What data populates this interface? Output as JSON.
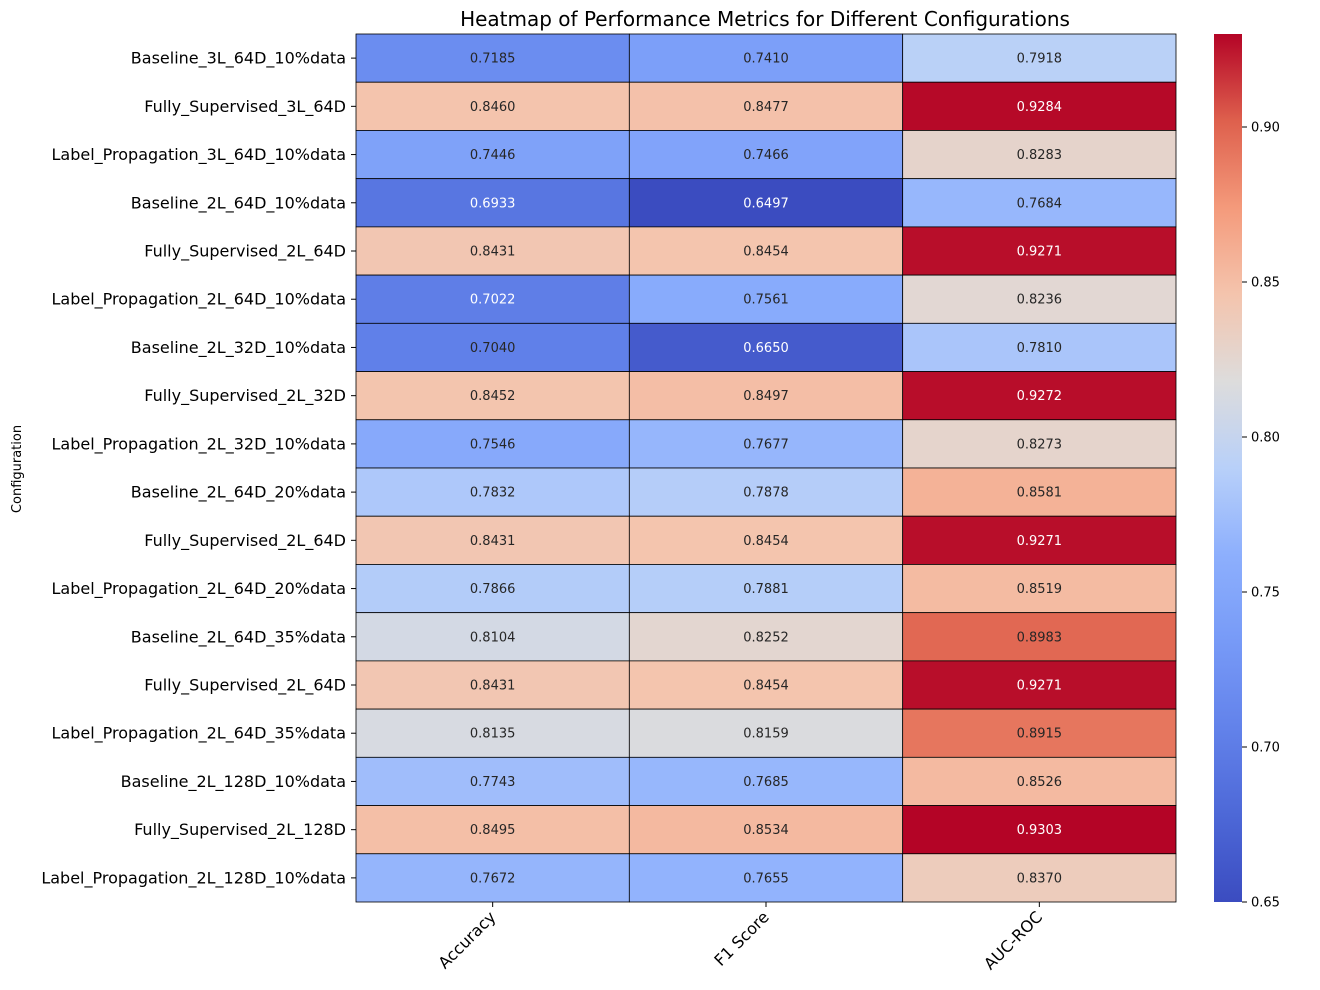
{
  "chart_data": {
    "type": "heatmap",
    "title": "Heatmap of Performance Metrics for Different Configurations",
    "ylabel": "Configuration",
    "xlabel": "",
    "columns": [
      "Accuracy",
      "F1 Score",
      "AUC-ROC"
    ],
    "rows": [
      "Baseline_3L_64D_10%data",
      "Fully_Supervised_3L_64D",
      "Label_Propagation_3L_64D_10%data",
      "Baseline_2L_64D_10%data",
      "Fully_Supervised_2L_64D",
      "Label_Propagation_2L_64D_10%data",
      "Baseline_2L_32D_10%data",
      "Fully_Supervised_2L_32D",
      "Label_Propagation_2L_32D_10%data",
      "Baseline_2L_64D_20%data",
      "Fully_Supervised_2L_64D",
      "Label_Propagation_2L_64D_20%data",
      "Baseline_2L_64D_35%data",
      "Fully_Supervised_2L_64D",
      "Label_Propagation_2L_64D_35%data",
      "Baseline_2L_128D_10%data",
      "Fully_Supervised_2L_128D",
      "Label_Propagation_2L_128D_10%data"
    ],
    "values": [
      [
        0.7185,
        0.741,
        0.7918
      ],
      [
        0.846,
        0.8477,
        0.9284
      ],
      [
        0.7446,
        0.7466,
        0.8283
      ],
      [
        0.6933,
        0.6497,
        0.7684
      ],
      [
        0.8431,
        0.8454,
        0.9271
      ],
      [
        0.7022,
        0.7561,
        0.8236
      ],
      [
        0.704,
        0.665,
        0.781
      ],
      [
        0.8452,
        0.8497,
        0.9272
      ],
      [
        0.7546,
        0.7677,
        0.8273
      ],
      [
        0.7832,
        0.7878,
        0.8581
      ],
      [
        0.8431,
        0.8454,
        0.9271
      ],
      [
        0.7866,
        0.7881,
        0.8519
      ],
      [
        0.8104,
        0.8252,
        0.8983
      ],
      [
        0.8431,
        0.8454,
        0.9271
      ],
      [
        0.8135,
        0.8159,
        0.8915
      ],
      [
        0.7743,
        0.7685,
        0.8526
      ],
      [
        0.8495,
        0.8534,
        0.9303
      ],
      [
        0.7672,
        0.7655,
        0.837
      ]
    ],
    "value_labels": [
      [
        "0.7185",
        "0.7410",
        "0.7918"
      ],
      [
        "0.8460",
        "0.8477",
        "0.9284"
      ],
      [
        "0.7446",
        "0.7466",
        "0.8283"
      ],
      [
        "0.6933",
        "0.6497",
        "0.7684"
      ],
      [
        "0.8431",
        "0.8454",
        "0.9271"
      ],
      [
        "0.7022",
        "0.7561",
        "0.8236"
      ],
      [
        "0.7040",
        "0.6650",
        "0.7810"
      ],
      [
        "0.8452",
        "0.8497",
        "0.9272"
      ],
      [
        "0.7546",
        "0.7677",
        "0.8273"
      ],
      [
        "0.7832",
        "0.7878",
        "0.8581"
      ],
      [
        "0.8431",
        "0.8454",
        "0.9271"
      ],
      [
        "0.7866",
        "0.7881",
        "0.8519"
      ],
      [
        "0.8104",
        "0.8252",
        "0.8983"
      ],
      [
        "0.8431",
        "0.8454",
        "0.9271"
      ],
      [
        "0.8135",
        "0.8159",
        "0.8915"
      ],
      [
        "0.7743",
        "0.7685",
        "0.8526"
      ],
      [
        "0.8495",
        "0.8534",
        "0.9303"
      ],
      [
        "0.7672",
        "0.7655",
        "0.8370"
      ]
    ],
    "colormap": "coolwarm",
    "vmin": 0.65,
    "vmax": 0.93,
    "colorbar_ticks": [
      0.65,
      0.7,
      0.75,
      0.8,
      0.85,
      0.9
    ],
    "colorbar_tick_labels": [
      "0.65",
      "0.70",
      "0.75",
      "0.80",
      "0.85",
      "0.90"
    ],
    "cell_border_color": "#000000"
  }
}
